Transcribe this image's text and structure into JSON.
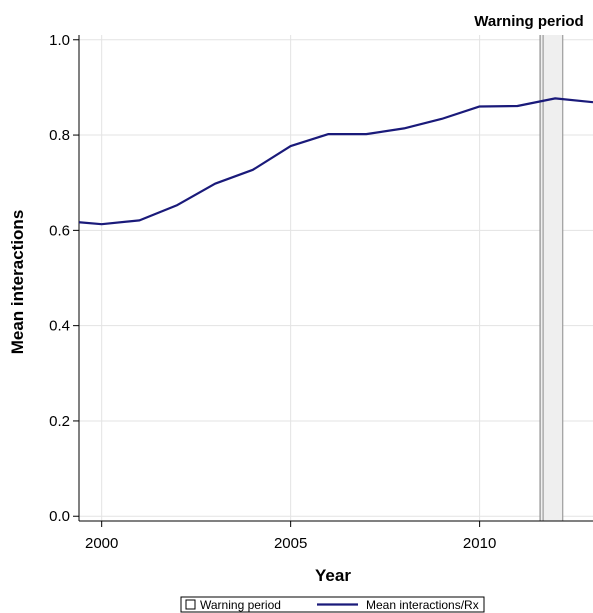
{
  "chart_data": {
    "type": "line",
    "title": "",
    "xlabel": "Year",
    "ylabel": "Mean interactions",
    "xlim": [
      1999.4,
      2013.0
    ],
    "ylim": [
      -0.01,
      1.01
    ],
    "x_ticks": [
      2000,
      2005,
      2010
    ],
    "y_ticks": [
      0.0,
      0.2,
      0.4,
      0.6,
      0.8,
      1.0
    ],
    "x_tick_labels": [
      "2000",
      "2005",
      "2010"
    ],
    "y_tick_labels": [
      "0.0",
      "0.2",
      "0.4",
      "0.6",
      "0.8",
      "1.0"
    ],
    "grid": true,
    "series": [
      {
        "name": "Mean interactions/Rx",
        "color": "#1a1a7a",
        "x": [
          1999.4,
          2000,
          2001,
          2002,
          2003,
          2004,
          2005,
          2006,
          2007,
          2008,
          2009,
          2010,
          2011,
          2012,
          2013
        ],
        "y": [
          0.617,
          0.613,
          0.621,
          0.653,
          0.698,
          0.727,
          0.777,
          0.802,
          0.802,
          0.814,
          0.834,
          0.86,
          0.861,
          0.877,
          0.869
        ]
      }
    ],
    "shaded_region": {
      "name": "Warning period",
      "x_start": 2011.6,
      "x_end": 2012.2,
      "label": "Warning period",
      "fill": "#efefef",
      "edge": "#8c8c8c"
    },
    "legend": {
      "placement": "bottom-center",
      "items": [
        {
          "label": "Warning period",
          "kind": "box"
        },
        {
          "label": "Mean interactions/Rx",
          "kind": "line",
          "color": "#1a1a7a"
        }
      ]
    }
  }
}
